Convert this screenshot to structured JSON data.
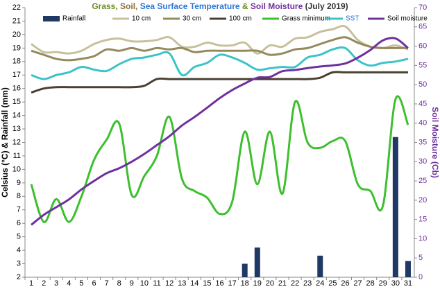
{
  "chart_data": {
    "type": "combo",
    "title_parts": [
      {
        "text": "Grass,",
        "color": "#6b8e23"
      },
      {
        "text": "Soil,",
        "color": "#8b6f3a"
      },
      {
        "text": "Sea Surface Temperature",
        "color": "#2e75d6"
      },
      {
        "text": "&",
        "color": "#6b8e23"
      },
      {
        "text": "Soil Moisture",
        "color": "#7030a0"
      },
      {
        "text": "(July 2019)",
        "color": "#333333"
      }
    ],
    "y_label": "Celsius (°C) & Rainfall (mm)",
    "y2_label": "Soil Moisture (Cb)",
    "categories": [
      "1",
      "2",
      "3",
      "4",
      "5",
      "6",
      "7",
      "8",
      "9",
      "10",
      "11",
      "12",
      "13",
      "14",
      "15",
      "16",
      "17",
      "18",
      "19",
      "20",
      "21",
      "22",
      "23",
      "24",
      "25",
      "26",
      "27",
      "28",
      "29",
      "30",
      "31"
    ],
    "ylim": [
      2,
      22
    ],
    "yticks": [
      2,
      3,
      4,
      5,
      6,
      7,
      8,
      9,
      10,
      11,
      12,
      13,
      14,
      15,
      16,
      17,
      18,
      19,
      20,
      21,
      22
    ],
    "y2lim": [
      0,
      70
    ],
    "y2ticks": [
      0,
      5,
      10,
      15,
      20,
      25,
      30,
      35,
      40,
      45,
      50,
      55,
      60,
      65,
      70
    ],
    "y2color": "#7030a0",
    "grid": false,
    "series": [
      {
        "name": "Rainfall",
        "type": "bar",
        "color": "#1f3864",
        "values": [
          0,
          0,
          0,
          0,
          0,
          0,
          0,
          0,
          0,
          0,
          0,
          0,
          0,
          0,
          0,
          0,
          0,
          3.0,
          4.2,
          0,
          0,
          0,
          0,
          3.6,
          0,
          0,
          0,
          0,
          0,
          12.4,
          3.2
        ]
      },
      {
        "name": "10 cm",
        "type": "line",
        "color": "#c8c09a",
        "values": [
          19.3,
          18.7,
          18.7,
          18.6,
          18.8,
          19.3,
          19.6,
          19.7,
          19.5,
          19.5,
          19.6,
          19.8,
          19.1,
          19.1,
          19.4,
          19.2,
          19.2,
          19.4,
          18.6,
          19.2,
          19.1,
          19.7,
          19.8,
          20.2,
          20.4,
          20.6,
          19.6,
          19.1,
          19.0,
          19.2,
          18.9
        ]
      },
      {
        "name": "30 cm",
        "type": "line",
        "color": "#958a5c",
        "values": [
          18.8,
          18.5,
          18.2,
          18.1,
          18.2,
          18.4,
          18.9,
          18.8,
          19.0,
          18.8,
          19.0,
          18.9,
          19.0,
          18.7,
          18.8,
          18.8,
          18.8,
          18.8,
          18.8,
          18.5,
          18.6,
          18.9,
          19.0,
          19.3,
          19.6,
          19.8,
          19.4,
          19.1,
          19.0,
          19.0,
          19.0
        ]
      },
      {
        "name": "100 cm",
        "type": "line",
        "color": "#4a4030",
        "values": [
          15.7,
          16.0,
          16.1,
          16.1,
          16.1,
          16.1,
          16.1,
          16.1,
          16.1,
          16.2,
          16.7,
          16.7,
          16.7,
          16.7,
          16.7,
          16.7,
          16.7,
          16.7,
          16.7,
          16.7,
          16.7,
          16.7,
          16.7,
          16.8,
          17.2,
          17.2,
          17.2,
          17.2,
          17.2,
          17.2,
          17.2
        ]
      },
      {
        "name": "Grass minimum",
        "type": "line",
        "color": "#3dbf2e",
        "values": [
          8.9,
          6.1,
          7.8,
          6.1,
          8.0,
          10.7,
          12.2,
          13.4,
          8.1,
          9.5,
          11.0,
          13.9,
          9.3,
          8.4,
          7.9,
          6.7,
          7.6,
          12.8,
          8.9,
          12.8,
          8.2,
          15.0,
          12.0,
          11.6,
          12.1,
          12.1,
          8.9,
          8.4,
          7.3,
          15.2,
          13.3
        ]
      },
      {
        "name": "SST",
        "type": "line",
        "color": "#3cc3c8",
        "values": [
          17.0,
          16.7,
          17.0,
          17.2,
          17.6,
          17.4,
          17.3,
          17.8,
          18.2,
          18.3,
          18.5,
          18.6,
          17.0,
          17.6,
          17.9,
          18.5,
          18.3,
          17.9,
          17.4,
          17.5,
          17.6,
          17.6,
          18.3,
          18.5,
          18.9,
          19.0,
          18.1,
          17.7,
          17.9,
          18.0,
          18.2
        ]
      },
      {
        "name": "Soil moisture",
        "type": "line",
        "axis": "y2",
        "color": "#7030a0",
        "values": [
          13.6,
          16.2,
          18.2,
          20.2,
          22.8,
          25.0,
          27.0,
          28.3,
          30.0,
          32.0,
          34.3,
          36.6,
          39.4,
          41.6,
          44.0,
          46.5,
          48.6,
          50.3,
          51.8,
          52.0,
          53.5,
          53.8,
          54.3,
          54.7,
          55.0,
          55.5,
          57.0,
          59.0,
          61.5,
          62.0,
          59.5
        ]
      }
    ]
  }
}
